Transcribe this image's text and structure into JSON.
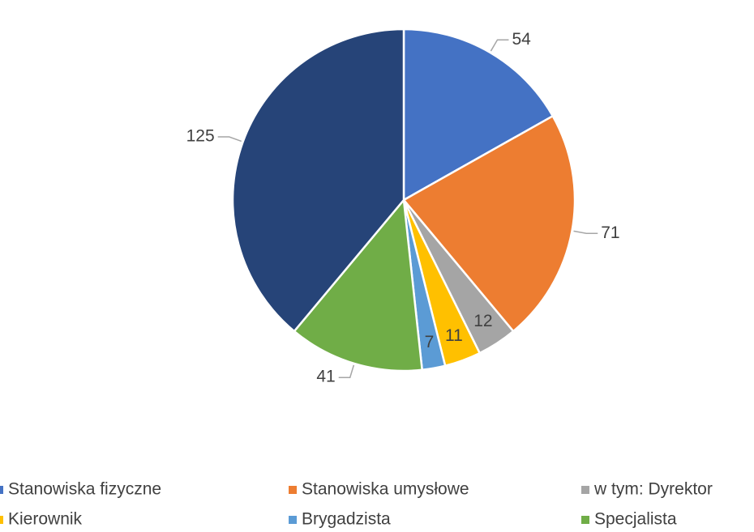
{
  "chart_data": {
    "type": "pie",
    "categories": [
      "Stanowiska fizyczne",
      "Stanowiska umysłowe",
      "w tym: Dyrektor",
      "Kierownik",
      "Brygadzista",
      "Specjalista",
      null
    ],
    "values": [
      54,
      71,
      12,
      11,
      7,
      41,
      125
    ],
    "colors": [
      "#4472c4",
      "#ed7d31",
      "#a5a5a5",
      "#ffc000",
      "#5b9bd5",
      "#70ad47",
      "#264478"
    ]
  }
}
